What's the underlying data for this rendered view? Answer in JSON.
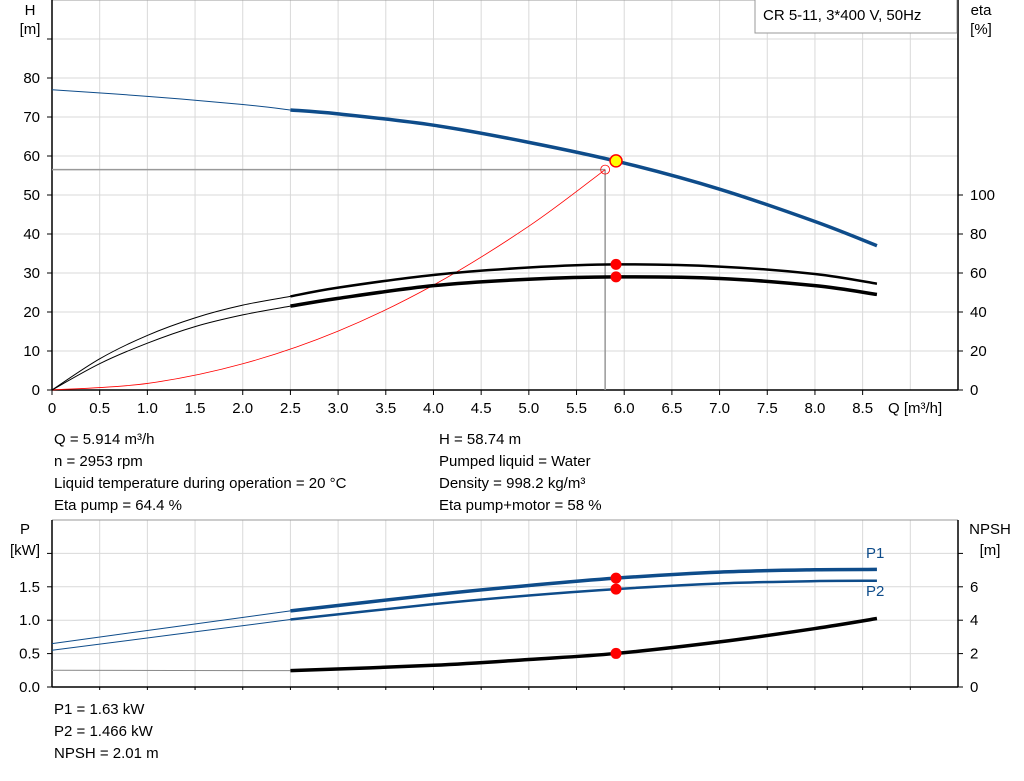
{
  "legend_box": "CR 5-11, 3*400 V, 50Hz",
  "colors": {
    "head": "#0e4c8a",
    "efficiency": "#000000",
    "system": "#ff0000",
    "duty_point_fill": "#ffff00",
    "marker": "#ff0000",
    "grid": "#d9d9d9",
    "power": "#0e4c8a",
    "npsh": "#000000"
  },
  "chart_data": [
    {
      "type": "line",
      "xlabel": "Q [m³/h]",
      "ylabel_left": [
        "H",
        "[m]"
      ],
      "ylabel_right": [
        "eta",
        "[%]"
      ],
      "xlim": [
        0,
        9.5
      ],
      "ylim_left": [
        0,
        100
      ],
      "ylim_right": [
        0,
        200
      ],
      "x_ticks": [
        "0",
        "0.5",
        "1.0",
        "1.5",
        "2.0",
        "2.5",
        "3.0",
        "3.5",
        "4.0",
        "4.5",
        "5.0",
        "5.5",
        "6.0",
        "6.5",
        "7.0",
        "7.5",
        "8.0",
        "8.5"
      ],
      "y_ticks_left": [
        "0",
        "10",
        "20",
        "30",
        "40",
        "50",
        "60",
        "70",
        "80"
      ],
      "y_ticks_right": [
        "0",
        "20",
        "40",
        "60",
        "80",
        "100"
      ],
      "grid": true,
      "series": [
        {
          "key": "H",
          "axis": "left",
          "x": [
            0,
            1,
            2,
            2.5,
            3,
            4,
            5,
            6,
            7,
            8,
            8.65
          ],
          "y": [
            77,
            75.3,
            73.2,
            71.8,
            70.8,
            67.9,
            63.5,
            58.2,
            51.5,
            43.2,
            37
          ]
        },
        {
          "key": "eta_pump",
          "axis": "right",
          "x": [
            0,
            0.5,
            1,
            1.5,
            2,
            2.5,
            3,
            4,
            5,
            5.914,
            7,
            8,
            8.65
          ],
          "y": [
            0,
            16,
            28,
            37,
            43.5,
            48,
            52.5,
            59,
            62.8,
            64.4,
            63.3,
            59.5,
            54.5
          ]
        },
        {
          "key": "eta_total",
          "axis": "right",
          "x": [
            0,
            0.5,
            1,
            1.5,
            2,
            2.5,
            3,
            4,
            5,
            5.914,
            7,
            8,
            8.65
          ],
          "y": [
            0,
            13.5,
            24,
            32.5,
            38.5,
            43,
            47,
            53.5,
            56.8,
            58,
            57.2,
            53.5,
            49
          ]
        },
        {
          "key": "system",
          "axis": "left",
          "x": [
            0,
            1,
            2,
            3,
            4,
            5,
            5.8
          ],
          "y": [
            0,
            1.68,
            6.72,
            15.1,
            26.9,
            42,
            56.5
          ]
        }
      ],
      "duty_point": {
        "Q": 5.914,
        "H": 58.74,
        "eta_pump": 64.4,
        "eta_total": 58
      },
      "reference_point": {
        "Q": 5.8,
        "H": 56.5
      }
    },
    {
      "type": "line",
      "ylabel_left": [
        "P",
        "[kW]"
      ],
      "ylabel_right": [
        "NPSH",
        "[m]"
      ],
      "xlim": [
        0,
        9.5
      ],
      "ylim_left": [
        0,
        2.5
      ],
      "ylim_right": [
        0,
        10
      ],
      "y_ticks_left": [
        "0.0",
        "0.5",
        "1.0",
        "1.5"
      ],
      "y_ticks_right": [
        "0",
        "2",
        "4",
        "6"
      ],
      "grid": true,
      "series": [
        {
          "name": "P1",
          "axis": "left",
          "x": [
            0,
            2.5,
            4,
            5,
            5.914,
            7,
            8,
            8.65
          ],
          "y": [
            0.65,
            1.14,
            1.38,
            1.52,
            1.63,
            1.72,
            1.755,
            1.76
          ]
        },
        {
          "name": "P2",
          "axis": "left",
          "x": [
            0,
            2.5,
            4,
            5,
            5.914,
            7,
            8,
            8.65
          ],
          "y": [
            0.55,
            1.01,
            1.24,
            1.37,
            1.466,
            1.55,
            1.585,
            1.59
          ]
        },
        {
          "key": "NPSH",
          "axis": "right",
          "x": [
            0,
            2.5,
            4,
            5,
            5.914,
            7,
            8,
            8.65
          ],
          "y": [
            1.0,
            0.98,
            1.3,
            1.65,
            2.01,
            2.7,
            3.5,
            4.1
          ]
        }
      ],
      "duty_point": {
        "Q": 5.914,
        "P1": 1.63,
        "P2": 1.466,
        "NPSH": 2.01
      }
    }
  ],
  "info_top_left": [
    "Q = 5.914 m³/h",
    "n = 2953 rpm",
    "Liquid temperature during operation = 20 °C",
    "Eta pump = 64.4 %"
  ],
  "info_top_right": [
    "H = 58.74 m",
    "Pumped liquid = Water",
    "Density = 998.2 kg/m³",
    "Eta pump+motor = 58 %"
  ],
  "info_bottom": [
    "P1 = 1.63 kW",
    "P2 = 1.466 kW",
    "NPSH = 2.01 m"
  ]
}
